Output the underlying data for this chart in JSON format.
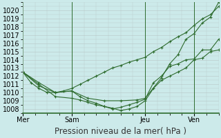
{
  "xlabel": "Pression niveau de la mer( hPa )",
  "bg_color": "#cceaea",
  "grid_color": "#bbcccc",
  "line_color": "#2d6b2d",
  "ylim": [
    1007.5,
    1021.0
  ],
  "yticks": [
    1008,
    1009,
    1010,
    1011,
    1012,
    1013,
    1014,
    1015,
    1016,
    1017,
    1018,
    1019,
    1020
  ],
  "xtick_labels": [
    "Mer",
    "Sam",
    "Jeu",
    "Ven"
  ],
  "xtick_positions": [
    0.0,
    0.25,
    0.625,
    0.875
  ],
  "vline_positions": [
    0.0,
    0.25,
    0.625,
    0.875
  ],
  "series1_x": [
    0.0,
    0.042,
    0.083,
    0.125,
    0.167,
    0.208,
    0.25,
    0.292,
    0.333,
    0.375,
    0.417,
    0.458,
    0.5,
    0.542,
    0.583,
    0.625,
    0.667,
    0.708,
    0.75,
    0.792,
    0.833,
    0.875,
    0.917,
    0.958,
    1.0
  ],
  "series1_y": [
    1012.5,
    1011.2,
    1010.5,
    1010.0,
    1010.0,
    1010.2,
    1010.5,
    1011.0,
    1011.5,
    1012.0,
    1012.5,
    1013.0,
    1013.3,
    1013.7,
    1014.0,
    1014.3,
    1015.0,
    1015.5,
    1016.2,
    1016.8,
    1017.3,
    1018.2,
    1019.0,
    1019.5,
    1020.5
  ],
  "series2_x": [
    0.0,
    0.083,
    0.167,
    0.25,
    0.292,
    0.333,
    0.375,
    0.417,
    0.458,
    0.5,
    0.542,
    0.583,
    0.625,
    0.667,
    0.708,
    0.75,
    0.792,
    0.833,
    0.875,
    0.917,
    0.958,
    1.0
  ],
  "series2_y": [
    1012.5,
    1010.8,
    1010.0,
    1010.2,
    1009.5,
    1009.0,
    1008.7,
    1008.3,
    1008.1,
    1007.8,
    1008.0,
    1008.3,
    1009.0,
    1010.5,
    1011.5,
    1012.0,
    1012.5,
    1013.0,
    1014.0,
    1014.2,
    1015.0,
    1015.2
  ],
  "series3_x": [
    0.0,
    0.083,
    0.167,
    0.25,
    0.292,
    0.333,
    0.375,
    0.417,
    0.458,
    0.5,
    0.542,
    0.583,
    0.625,
    0.667,
    0.708,
    0.75,
    0.792,
    0.833,
    0.875,
    0.917,
    0.958,
    1.0
  ],
  "series3_y": [
    1012.5,
    1011.0,
    1009.5,
    1009.3,
    1009.1,
    1008.8,
    1008.5,
    1008.3,
    1008.0,
    1008.2,
    1008.5,
    1008.8,
    1009.2,
    1011.2,
    1012.0,
    1013.2,
    1013.5,
    1014.0,
    1014.1,
    1015.2,
    1015.2,
    1016.5
  ],
  "series4_x": [
    0.0,
    0.083,
    0.167,
    0.25,
    0.333,
    0.417,
    0.5,
    0.583,
    0.625,
    0.708,
    0.75,
    0.792,
    0.833,
    0.875,
    0.917,
    0.958,
    1.0
  ],
  "series4_y": [
    1012.5,
    1011.2,
    1010.0,
    1010.2,
    1009.3,
    1009.0,
    1009.0,
    1009.1,
    1009.3,
    1011.8,
    1013.5,
    1014.6,
    1016.5,
    1017.2,
    1018.5,
    1019.2,
    1021.0
  ],
  "xlabel_fontsize": 8.5,
  "tick_fontsize": 7.0
}
